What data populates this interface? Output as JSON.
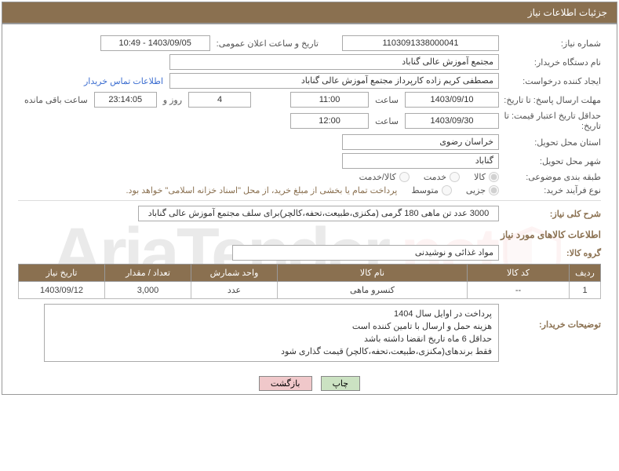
{
  "header": {
    "title": "جزئیات اطلاعات نیاز"
  },
  "form": {
    "need_number_label": "شماره نیاز:",
    "need_number": "1103091338000041",
    "announce_label": "تاریخ و ساعت اعلان عمومی:",
    "announce_value": "1403/09/05 - 10:49",
    "buyer_org_label": "نام دستگاه خریدار:",
    "buyer_org": "مجتمع آموزش عالی گناباد",
    "requester_label": "ایجاد کننده درخواست:",
    "requester": "مصطفی کریم زاده کارپرداز مجتمع آموزش عالی گناباد",
    "contact_link": "اطلاعات تماس خریدار",
    "deadline_label": "مهلت ارسال پاسخ: تا تاریخ:",
    "deadline_date": "1403/09/10",
    "time_label": "ساعت",
    "deadline_time": "11:00",
    "remaining_days": "4",
    "remaining_days_label": "روز و",
    "remaining_time": "23:14:05",
    "remaining_suffix": "ساعت باقی مانده",
    "validity_label": "حداقل تاریخ اعتبار قیمت: تا تاریخ:",
    "validity_date": "1403/09/30",
    "validity_time": "12:00",
    "province_label": "استان محل تحویل:",
    "province": "خراسان رضوی",
    "city_label": "شهر محل تحویل:",
    "city": "گناباد",
    "category_label": "طبقه بندی موضوعی:",
    "cat_opts": {
      "goods": "کالا",
      "service": "خدمت",
      "both": "کالا/خدمت"
    },
    "process_label": "نوع فرآیند خرید:",
    "proc_opts": {
      "minor": "جزیی",
      "medium": "متوسط"
    },
    "treasury_note": "پرداخت تمام یا بخشی از مبلغ خرید، از محل \"اسناد خزانه اسلامی\" خواهد بود.",
    "general_desc_label": "شرح کلی نیاز:",
    "general_desc": "3000 عدد تن ماهی 180 گرمی (مکنزی،طبیعت،تحفه،کالچر)برای سلف مجتمع آموزش عالی گناباد",
    "goods_section_title": "اطلاعات کالاهای مورد نیاز",
    "group_label": "گروه کالا:",
    "group_value": "مواد غذائی و نوشیدنی",
    "buyer_notes_label": "توضیحات خریدار:",
    "buyer_notes": [
      "پرداخت در اوایل سال 1404",
      "هزینه حمل و ارسال با تامین کننده است",
      "حداقل 6 ماه تاریخ انقضا داشته باشد",
      "فقط برندهای(مکنزی،طبیعت،تحفه،کالچر) قیمت گذاری شود"
    ]
  },
  "table": {
    "headers": {
      "row": "ردیف",
      "code": "کد کالا",
      "name": "نام کالا",
      "unit": "واحد شمارش",
      "qty": "تعداد / مقدار",
      "date": "تاریخ نیاز"
    },
    "rows": [
      {
        "row": "1",
        "code": "--",
        "name": "کنسرو ماهی",
        "unit": "عدد",
        "qty": "3,000",
        "date": "1403/09/12"
      }
    ]
  },
  "buttons": {
    "print": "چاپ",
    "back": "بازگشت"
  },
  "watermark_text": "AriaTender"
}
